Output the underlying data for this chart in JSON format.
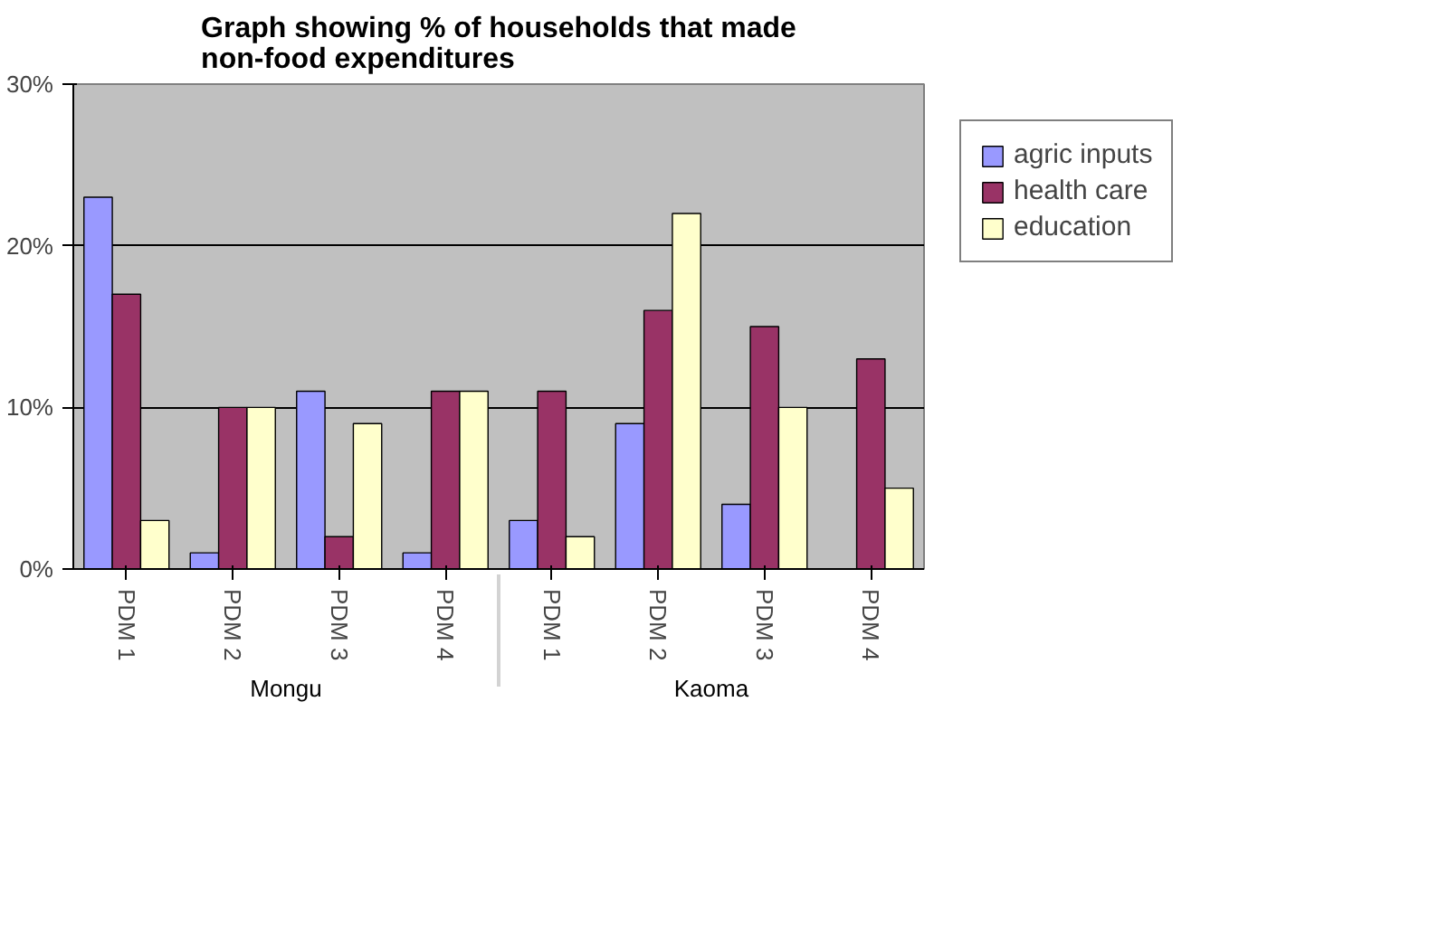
{
  "chart_data": {
    "type": "bar",
    "title": "Graph showing % of households that made non-food expenditures",
    "categories": [
      "PDM 1",
      "PDM 2",
      "PDM 3",
      "PDM 4",
      "PDM 1",
      "PDM 2",
      "PDM 3",
      "PDM 4"
    ],
    "annotations": [
      "Mongu",
      "Kaoma"
    ],
    "series": [
      {
        "name": "agric inputs",
        "color": "#9999ff",
        "values": [
          23,
          1,
          11,
          1,
          3,
          9,
          4,
          0
        ]
      },
      {
        "name": "health care",
        "color": "#993366",
        "values": [
          17,
          10,
          2,
          11,
          11,
          16,
          15,
          13
        ]
      },
      {
        "name": "education",
        "color": "#ffffcc",
        "values": [
          3,
          10,
          9,
          11,
          2,
          22,
          10,
          5
        ]
      }
    ],
    "ylim": [
      0,
      30
    ],
    "yticks": [
      {
        "value": 0,
        "label": "0%"
      },
      {
        "value": 10,
        "label": "10%"
      },
      {
        "value": 20,
        "label": "20%"
      },
      {
        "value": 30,
        "label": "30%"
      }
    ],
    "grid": "y",
    "legend": "right"
  }
}
